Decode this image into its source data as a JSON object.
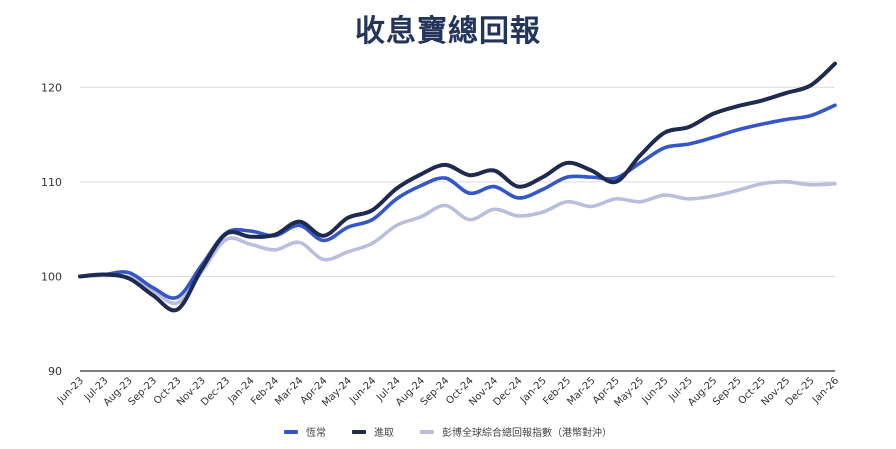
{
  "chart_data": {
    "type": "line",
    "title": "收息寶總回報",
    "ylim": [
      90,
      125
    ],
    "yticks": [
      90,
      100,
      110,
      120
    ],
    "grid": true,
    "legend_position": "bottom",
    "categories": [
      "Jun-23",
      "Jul-23",
      "Aug-23",
      "Sep-23",
      "Oct-23",
      "Nov-23",
      "Dec-23",
      "Jan-24",
      "Feb-24",
      "Mar-24",
      "Apr-24",
      "May-24",
      "Jun-24",
      "Jul-24",
      "Aug-24",
      "Sep-24",
      "Oct-24",
      "Nov-24",
      "Dec-24",
      "Jan-25",
      "Feb-25",
      "Mar-25",
      "Apr-25",
      "May-25",
      "Jun-25",
      "Jul-25",
      "Aug-25",
      "Sep-25",
      "Oct-25",
      "Nov-25",
      "Dec-25",
      "Jan-26"
    ],
    "series": [
      {
        "name": "恆常",
        "color": "#3556c8",
        "values": [
          100,
          100.2,
          100.4,
          98.8,
          97.8,
          101.2,
          104.6,
          104.8,
          104.3,
          105.4,
          103.8,
          105.2,
          106.0,
          108.2,
          109.6,
          110.4,
          108.8,
          109.5,
          108.3,
          109.2,
          110.5,
          110.5,
          110.4,
          112.0,
          113.6,
          114.0,
          114.7,
          115.5,
          116.1,
          116.6,
          117.0,
          118.1
        ]
      },
      {
        "name": "進取",
        "color": "#1e2a4f",
        "values": [
          100,
          100.2,
          99.8,
          98.0,
          96.5,
          100.8,
          104.5,
          104.2,
          104.4,
          105.8,
          104.3,
          106.2,
          107.0,
          109.3,
          110.8,
          111.8,
          110.7,
          111.2,
          109.5,
          110.5,
          112.0,
          111.2,
          110.0,
          112.8,
          115.2,
          115.8,
          117.2,
          118.0,
          118.6,
          119.4,
          120.2,
          122.5
        ]
      },
      {
        "name": "彭博全球綜合總回報指數（港幣對沖）",
        "color": "#b9bedf",
        "values": [
          100,
          100.1,
          99.9,
          98.5,
          97.2,
          100.5,
          103.9,
          103.4,
          102.8,
          103.6,
          101.8,
          102.6,
          103.5,
          105.4,
          106.3,
          107.5,
          106.0,
          107.1,
          106.4,
          106.8,
          107.9,
          107.4,
          108.2,
          107.9,
          108.6,
          108.2,
          108.5,
          109.1,
          109.8,
          110.0,
          109.7,
          109.8
        ]
      }
    ]
  }
}
